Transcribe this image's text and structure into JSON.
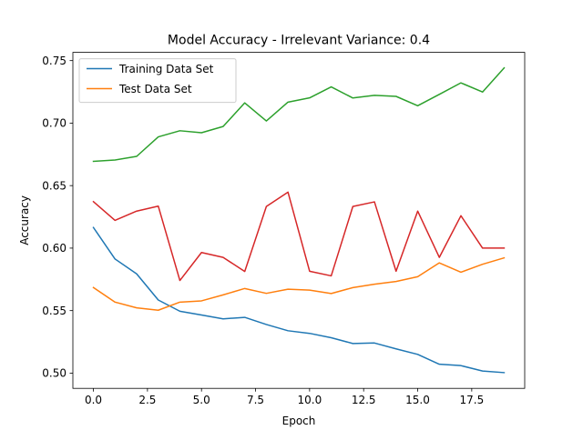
{
  "chart_data": {
    "type": "line",
    "title": "Model Accuracy - Irrelevant Variance: 0.4",
    "xlabel": "Epoch",
    "ylabel": "Accuracy",
    "xlim": [
      -0.95,
      19.95
    ],
    "ylim": [
      0.4878,
      0.7566
    ],
    "grid": false,
    "legend_position": "upper-left",
    "x": [
      0,
      1,
      2,
      3,
      4,
      5,
      6,
      7,
      8,
      9,
      10,
      11,
      12,
      13,
      14,
      15,
      16,
      17,
      18,
      19
    ],
    "x_ticks": [
      0.0,
      2.5,
      5.0,
      7.5,
      10.0,
      12.5,
      15.0,
      17.5
    ],
    "x_tick_labels": [
      "0.0",
      "2.5",
      "5.0",
      "7.5",
      "10.0",
      "12.5",
      "15.0",
      "17.5"
    ],
    "y_ticks": [
      0.5,
      0.55,
      0.6,
      0.65,
      0.7,
      0.75
    ],
    "y_tick_labels": [
      "0.50",
      "0.55",
      "0.60",
      "0.65",
      "0.70",
      "0.75"
    ],
    "series": [
      {
        "name": "Training Data Set",
        "color": "#1f77b4",
        "values": [
          0.6165,
          0.5913,
          0.5794,
          0.5585,
          0.5495,
          0.5465,
          0.5434,
          0.5446,
          0.5389,
          0.5339,
          0.5318,
          0.5283,
          0.5237,
          0.5241,
          0.5194,
          0.515,
          0.5071,
          0.506,
          0.5017,
          0.5004
        ]
      },
      {
        "name": "Test Data Set",
        "color": "#ff7f0e",
        "values": [
          0.5685,
          0.5568,
          0.5522,
          0.5503,
          0.5568,
          0.5578,
          0.5626,
          0.5677,
          0.5638,
          0.5671,
          0.5664,
          0.5637,
          0.5684,
          0.5711,
          0.5733,
          0.5771,
          0.5882,
          0.5807,
          0.5871,
          0.5922
        ]
      },
      {
        "color": "#2ca02c",
        "values": [
          0.6694,
          0.6705,
          0.6734,
          0.689,
          0.6939,
          0.6923,
          0.6973,
          0.7162,
          0.7017,
          0.7168,
          0.7202,
          0.729,
          0.7201,
          0.7222,
          0.7214,
          0.7139,
          0.723,
          0.7322,
          0.7249,
          0.7442
        ]
      },
      {
        "color": "#d62728",
        "values": [
          0.6372,
          0.6222,
          0.6296,
          0.6336,
          0.5741,
          0.5965,
          0.5926,
          0.5813,
          0.6333,
          0.6448,
          0.5815,
          0.5778,
          0.6333,
          0.637,
          0.5815,
          0.6296,
          0.5926,
          0.6259,
          0.6,
          0.6
        ]
      }
    ]
  }
}
